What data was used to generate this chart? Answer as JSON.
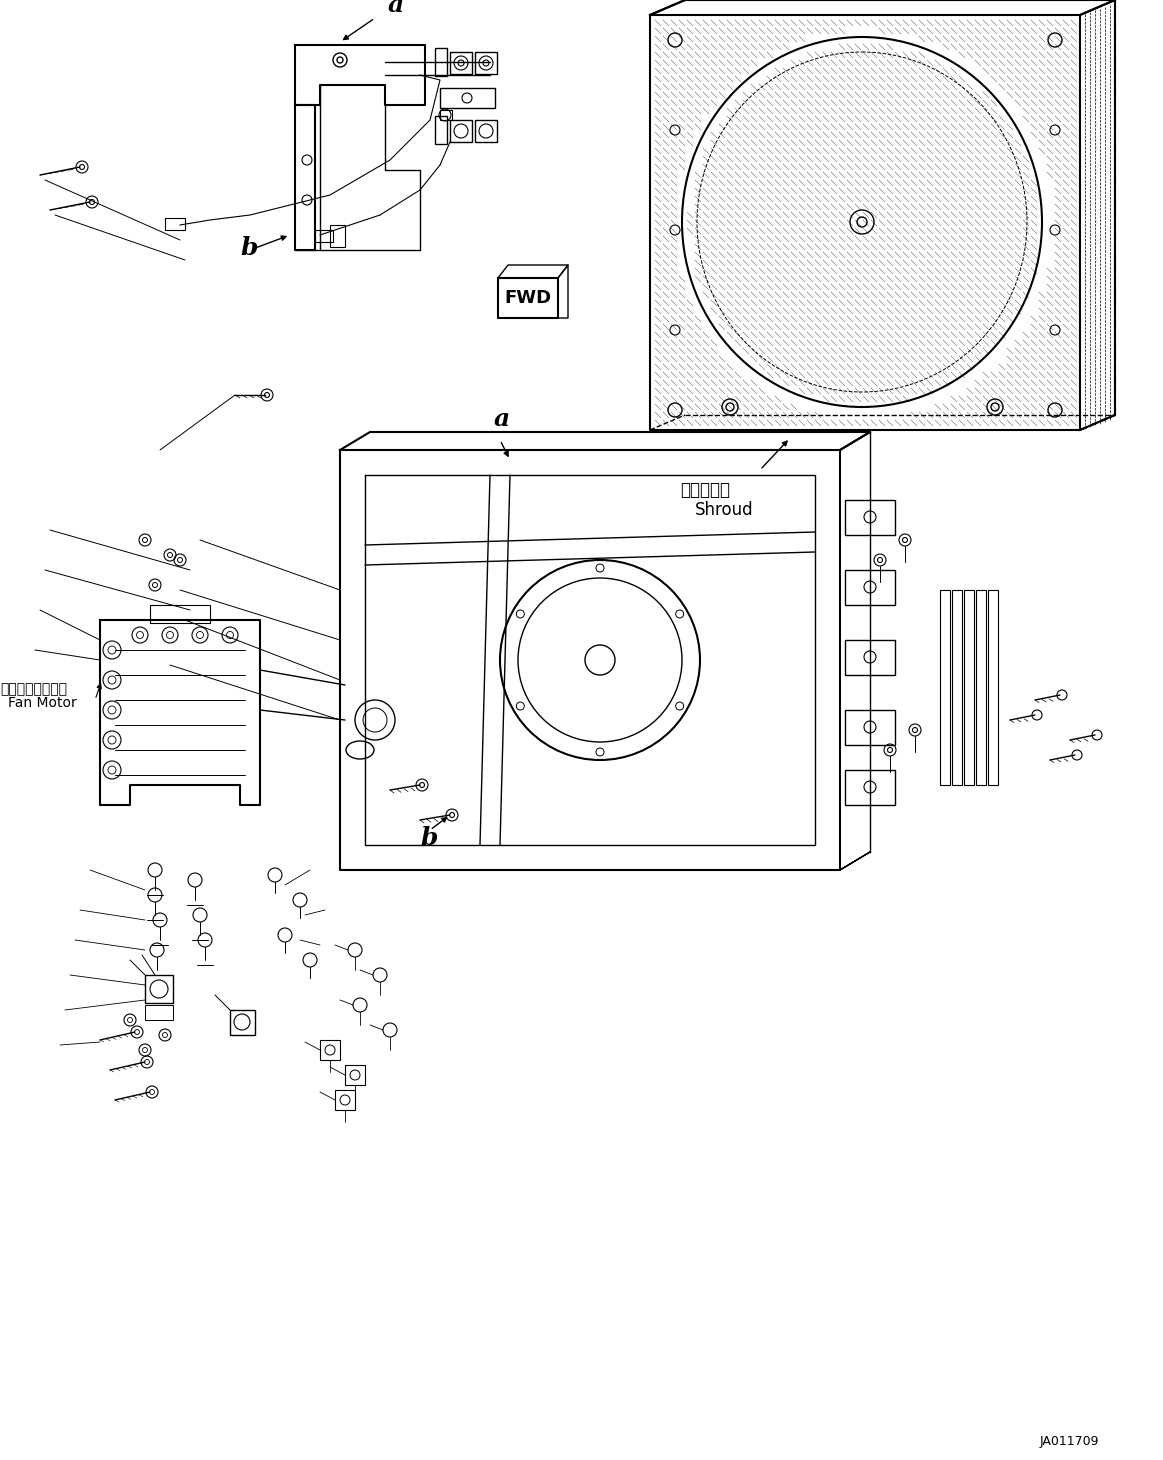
{
  "background_color": "#ffffff",
  "page_id": "JA011709",
  "labels": {
    "shroud_jp": "シュラウド",
    "shroud_en": "Shroud",
    "fan_motor_jp": "インファンモータ",
    "fan_motor_en": "Fan Motor",
    "fwd": "FWD",
    "label_a1": "a",
    "label_b1": "b",
    "label_a2": "a",
    "label_b2": "b"
  }
}
